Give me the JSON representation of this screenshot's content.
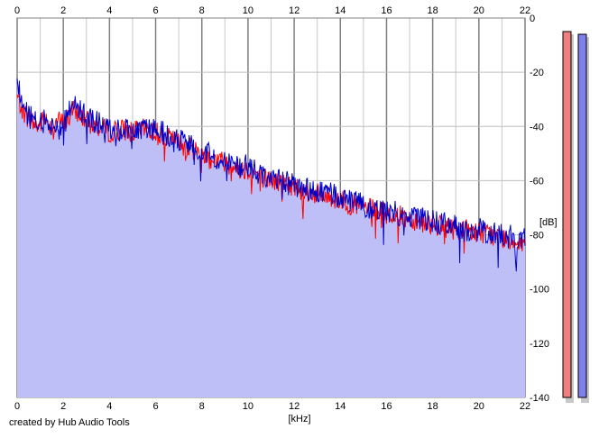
{
  "chart_data": {
    "type": "area",
    "xlabel": "[kHz]",
    "ylabel": "[dB]",
    "xlim": [
      0,
      22
    ],
    "ylim": [
      -140,
      0
    ],
    "x_ticks": [
      "0",
      "2",
      "4",
      "6",
      "8",
      "10",
      "12",
      "14",
      "16",
      "18",
      "20",
      "22"
    ],
    "y_ticks": [
      "0",
      "-20",
      "-40",
      "-60",
      "-80",
      "-100",
      "-120",
      "-140"
    ],
    "grid": true,
    "series": [
      {
        "color": "#ff0000",
        "x": [
          0,
          0.3,
          0.6,
          0.9,
          1.2,
          1.5,
          1.8,
          2.1,
          2.4,
          2.7,
          3,
          3.5,
          4,
          4.5,
          5,
          5.5,
          6,
          6.5,
          7,
          7.5,
          8,
          8.5,
          9,
          9.5,
          10,
          10.5,
          11,
          11.5,
          12,
          12.5,
          13,
          13.5,
          14,
          14.5,
          15,
          15.5,
          16,
          16.5,
          17,
          17.5,
          18,
          18.5,
          19,
          19.5,
          20,
          20.5,
          21,
          21.5,
          22
        ],
        "values": [
          -29,
          -35,
          -38,
          -40,
          -37,
          -40,
          -38,
          -39,
          -34,
          -35,
          -38,
          -40,
          -42,
          -41,
          -42,
          -41,
          -42,
          -44,
          -46,
          -48,
          -50,
          -52,
          -53,
          -55,
          -56,
          -58,
          -60,
          -61,
          -62,
          -64,
          -65,
          -66,
          -67,
          -69,
          -70,
          -71,
          -72,
          -73,
          -74,
          -75,
          -76,
          -77,
          -78,
          -78,
          -79,
          -80,
          -81,
          -82,
          -83
        ]
      },
      {
        "color": "#0000cc",
        "x": [
          0,
          0.3,
          0.6,
          0.9,
          1.2,
          1.5,
          1.8,
          2.1,
          2.4,
          2.7,
          3,
          3.5,
          4,
          4.5,
          5,
          5.5,
          6,
          6.5,
          7,
          7.5,
          8,
          8.5,
          9,
          9.5,
          10,
          10.5,
          11,
          11.5,
          12,
          12.5,
          13,
          13.5,
          14,
          14.5,
          15,
          15.5,
          16,
          16.5,
          17,
          17.5,
          18,
          18.5,
          19,
          19.5,
          20,
          20.5,
          21,
          21.5,
          22
        ],
        "values": [
          -24,
          -33,
          -37,
          -39,
          -38,
          -40,
          -38,
          -38,
          -30,
          -34,
          -37,
          -39,
          -41,
          -41,
          -41,
          -41,
          -41,
          -43,
          -45,
          -47,
          -49,
          -51,
          -53,
          -54,
          -55,
          -57,
          -59,
          -60,
          -62,
          -63,
          -64,
          -65,
          -66,
          -68,
          -69,
          -70,
          -71,
          -72,
          -73,
          -74,
          -75,
          -76,
          -77,
          -78,
          -78,
          -79,
          -80,
          -81,
          -82
        ]
      }
    ]
  },
  "meters": [
    {
      "color": "#f08080",
      "level": -5
    },
    {
      "color": "#7f7fee",
      "level": -6
    }
  ],
  "footer": {
    "credit": "created by Hub Audio Tools"
  }
}
